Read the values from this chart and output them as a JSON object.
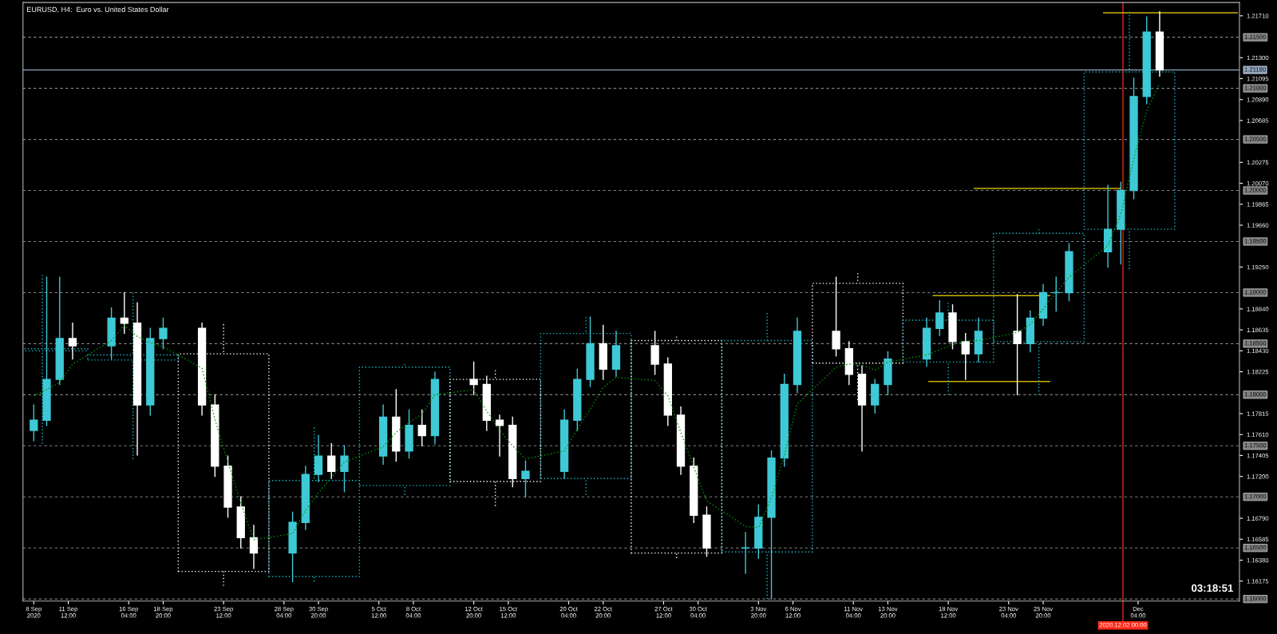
{
  "chart_data": {
    "type": "candlestick",
    "title": "EURUSD, H4:  Euro vs. United States Dollar",
    "xlim": [
      "2020-09-08T00:00",
      "2020-12-11T00:00"
    ],
    "ylim": [
      1.1598,
      1.2184
    ],
    "xticks": [
      {
        "value": "2020-09-08T20:00",
        "label": "8 Sep 2020"
      },
      {
        "value": "2020-09-11T12:00",
        "label": "11 Sep 12:00"
      },
      {
        "value": "2020-09-16T04:00",
        "label": "16 Sep 04:00"
      },
      {
        "value": "2020-09-18T20:00",
        "label": "18 Sep 20:00"
      },
      {
        "value": "2020-09-23T12:00",
        "label": "23 Sep 12:00"
      },
      {
        "value": "2020-09-28T04:00",
        "label": "28 Sep 04:00"
      },
      {
        "value": "2020-09-30T20:00",
        "label": "30 Sep 20:00"
      },
      {
        "value": "2020-10-05T12:00",
        "label": "5 Oct 12:00"
      },
      {
        "value": "2020-10-08T04:00",
        "label": "8 Oct 04:00"
      },
      {
        "value": "2020-10-12T20:00",
        "label": "12 Oct 20:00"
      },
      {
        "value": "2020-10-15T12:00",
        "label": "15 Oct 12:00"
      },
      {
        "value": "2020-10-20T04:00",
        "label": "20 Oct 04:00"
      },
      {
        "value": "2020-10-22T20:00",
        "label": "22 Oct 20:00"
      },
      {
        "value": "2020-10-27T12:00",
        "label": "27 Oct 12:00"
      },
      {
        "value": "2020-10-30T04:00",
        "label": "30 Oct 04:00"
      },
      {
        "value": "2020-11-03T20:00",
        "label": "3 Nov 20:00"
      },
      {
        "value": "2020-11-06T12:00",
        "label": "6 Nov 12:00"
      },
      {
        "value": "2020-11-11T04:00",
        "label": "11 Nov 04:00"
      },
      {
        "value": "2020-11-13T20:00",
        "label": "13 Nov 20:00"
      },
      {
        "value": "2020-11-18T12:00",
        "label": "18 Nov 12:00"
      },
      {
        "value": "2020-11-23T04:00",
        "label": "23 Nov 04:00"
      },
      {
        "value": "2020-11-25T20:00",
        "label": "25 Nov 20:00"
      },
      {
        "value": "2020-12-03T04:00",
        "label": "Dec 04:00"
      }
    ],
    "yticks": [
      {
        "value": 1.2171,
        "label": "1.21710"
      },
      {
        "value": 1.213,
        "label": "1.21300"
      },
      {
        "value": 1.21095,
        "label": "1.21095"
      },
      {
        "value": 1.2089,
        "label": "1.20890"
      },
      {
        "value": 1.20685,
        "label": "1.20685"
      },
      {
        "value": 1.20275,
        "label": "1.20275"
      },
      {
        "value": 1.2007,
        "label": "1.20070"
      },
      {
        "value": 1.19865,
        "label": "1.19865"
      },
      {
        "value": 1.1966,
        "label": "1.19660"
      },
      {
        "value": 1.1925,
        "label": "1.19250"
      },
      {
        "value": 1.1884,
        "label": "1.18840"
      },
      {
        "value": 1.18635,
        "label": "1.18635"
      },
      {
        "value": 1.1843,
        "label": "1.18430"
      },
      {
        "value": 1.18225,
        "label": "1.18225"
      },
      {
        "value": 1.17815,
        "label": "1.17815"
      },
      {
        "value": 1.1761,
        "label": "1.17610"
      },
      {
        "value": 1.17405,
        "label": "1.17405"
      },
      {
        "value": 1.172,
        "label": "1.17200"
      },
      {
        "value": 1.1679,
        "label": "1.16790"
      },
      {
        "value": 1.16585,
        "label": "1.16585"
      },
      {
        "value": 1.1638,
        "label": "1.16380"
      },
      {
        "value": 1.16175,
        "label": "1.16175"
      }
    ],
    "ref_lines": [
      {
        "axis": "y",
        "value": 1.215,
        "label": "1.21500",
        "color": "#808080",
        "line_style": "dashed"
      },
      {
        "axis": "y",
        "value": 1.21,
        "label": "1.21000",
        "color": "#808080",
        "line_style": "dashed"
      },
      {
        "axis": "y",
        "value": 1.205,
        "label": "1.20500",
        "color": "#808080",
        "line_style": "dashed"
      },
      {
        "axis": "y",
        "value": 1.2,
        "label": "1.20000",
        "color": "#808080",
        "line_style": "dashed"
      },
      {
        "axis": "y",
        "value": 1.195,
        "label": "1.19500",
        "color": "#808080",
        "line_style": "dashed"
      },
      {
        "axis": "y",
        "value": 1.19,
        "label": "1.19000",
        "color": "#808080",
        "line_style": "dashed"
      },
      {
        "axis": "y",
        "value": 1.185,
        "label": "1.18500",
        "color": "#808080",
        "line_style": "dashed"
      },
      {
        "axis": "y",
        "value": 1.18,
        "label": "1.18000",
        "color": "#808080",
        "line_style": "dashed"
      },
      {
        "axis": "y",
        "value": 1.175,
        "label": "1.17500",
        "color": "#808080",
        "line_style": "dashed"
      },
      {
        "axis": "y",
        "value": 1.17,
        "label": "1.17000",
        "color": "#808080",
        "line_style": "dashed"
      },
      {
        "axis": "y",
        "value": 1.165,
        "label": "1.16500",
        "color": "#808080",
        "line_style": "dashed"
      },
      {
        "axis": "y",
        "value": 1.16,
        "label": "1.16000",
        "color": "#808080",
        "line_style": "dashed"
      },
      {
        "axis": "y",
        "value": 1.2118,
        "label": "1.21180",
        "color": "#8ea4c0",
        "line_style": "solid"
      },
      {
        "axis": "x",
        "value": "2020-12-02T00:00",
        "label": "2020.12.02 00:00",
        "color": "#ff2a1a",
        "line_style": "solid"
      }
    ],
    "annotations": [
      "03:18:51"
    ],
    "series": [
      {
        "line_style": "dotted",
        "x": [
          "2020-09-09T12:00",
          "2020-09-16T12:00",
          "2020-09-23T12:00",
          "2020-09-30T12:00",
          "2020-10-07T12:00",
          "2020-10-14T12:00",
          "2020-10-21T12:00",
          "2020-10-28T12:00",
          "2020-11-04T12:00",
          "2020-11-11T12:00",
          "2020-11-18T12:00",
          "2020-11-25T12:00",
          "2020-12-02T12:00"
        ],
        "colors": [
          "#17b8c8",
          "#17b8c8",
          "#ffffff",
          "#17b8c8",
          "#17b8c8",
          "#ffffff",
          "#17b8c8",
          "#ffffff",
          "#17b8c8",
          "#ffffff",
          "#17b8c8",
          "#17b8c8",
          "#17b8c8"
        ],
        "ohlc": [
          [
            1.1843,
            1.1917,
            1.1752,
            1.1845
          ],
          [
            1.1834,
            1.19,
            1.1737,
            1.1839
          ],
          [
            1.184,
            1.1869,
            1.1613,
            1.1627
          ],
          [
            1.1622,
            1.1768,
            1.1617,
            1.1716
          ],
          [
            1.1711,
            1.183,
            1.1702,
            1.1827
          ],
          [
            1.1815,
            1.1824,
            1.1691,
            1.1715
          ],
          [
            1.1718,
            1.1876,
            1.1702,
            1.186
          ],
          [
            1.1853,
            1.1857,
            1.164,
            1.1645
          ],
          [
            1.1646,
            1.188,
            1.16,
            1.1853
          ],
          [
            1.1909,
            1.1919,
            1.1795,
            1.1831
          ],
          [
            1.1832,
            1.189,
            1.18,
            1.1873
          ],
          [
            1.1852,
            1.1962,
            1.18,
            1.1958
          ],
          [
            1.1962,
            1.2175,
            1.1923,
            1.2116
          ]
        ]
      },
      {
        "type": "line",
        "line_style": "dotted",
        "color": "#009900",
        "x": [
          "2020-09-08T20:00",
          "2020-09-09T20:00",
          "2020-09-10T20:00",
          "2020-09-11T20:00",
          "2020-09-14T20:00",
          "2020-09-15T20:00",
          "2020-09-16T20:00",
          "2020-09-17T20:00",
          "2020-09-18T20:00",
          "2020-09-21T20:00",
          "2020-09-22T20:00",
          "2020-09-23T20:00",
          "2020-09-24T20:00",
          "2020-09-25T20:00",
          "2020-09-28T20:00",
          "2020-09-29T20:00",
          "2020-09-30T20:00",
          "2020-10-01T20:00",
          "2020-10-02T20:00",
          "2020-10-05T20:00",
          "2020-10-06T20:00",
          "2020-10-07T20:00",
          "2020-10-08T20:00",
          "2020-10-09T20:00",
          "2020-10-12T20:00",
          "2020-10-13T20:00",
          "2020-10-14T20:00",
          "2020-10-15T20:00",
          "2020-10-16T20:00",
          "2020-10-19T20:00",
          "2020-10-20T20:00",
          "2020-10-21T20:00",
          "2020-10-22T20:00",
          "2020-10-23T20:00",
          "2020-10-26T20:00",
          "2020-10-27T20:00",
          "2020-10-28T20:00",
          "2020-10-29T20:00",
          "2020-10-30T20:00",
          "2020-11-02T20:00",
          "2020-11-03T20:00",
          "2020-11-04T20:00",
          "2020-11-05T20:00",
          "2020-11-06T20:00",
          "2020-11-09T20:00",
          "2020-11-10T20:00",
          "2020-11-11T20:00",
          "2020-11-12T20:00",
          "2020-11-13T20:00",
          "2020-11-16T20:00",
          "2020-11-17T20:00",
          "2020-11-18T20:00",
          "2020-11-19T20:00",
          "2020-11-20T20:00",
          "2020-11-23T20:00",
          "2020-11-24T20:00",
          "2020-11-25T20:00",
          "2020-11-26T20:00",
          "2020-11-27T20:00",
          "2020-11-30T20:00",
          "2020-12-01T20:00",
          "2020-12-02T20:00",
          "2020-12-03T20:00",
          "2020-12-04T20:00"
        ],
        "values": [
          1.1799,
          1.1805,
          1.1812,
          1.183,
          1.1853,
          1.1868,
          1.1857,
          1.1851,
          1.1847,
          1.1826,
          1.1776,
          1.1734,
          1.1694,
          1.1658,
          1.1664,
          1.1687,
          1.1704,
          1.1719,
          1.1734,
          1.1749,
          1.1763,
          1.1773,
          1.1781,
          1.18,
          1.1805,
          1.1784,
          1.1765,
          1.175,
          1.1737,
          1.1745,
          1.1766,
          1.1786,
          1.1807,
          1.1817,
          1.1814,
          1.1799,
          1.1763,
          1.1729,
          1.1696,
          1.1671,
          1.167,
          1.1699,
          1.1741,
          1.1791,
          1.1827,
          1.183,
          1.1829,
          1.1824,
          1.1832,
          1.1839,
          1.1844,
          1.1849,
          1.1853,
          1.1853,
          1.1861,
          1.1869,
          1.1884,
          1.19,
          1.1915,
          1.1946,
          1.1977,
          1.2031,
          1.2078,
          1.2105
        ]
      },
      {
        "type": "line",
        "line_style": "solid",
        "color": "#c8b400",
        "x": [
          "2020-11-30T12:00",
          "2020-12-10T20:00"
        ],
        "values": [
          1.2174,
          1.2174
        ]
      },
      {
        "type": "line",
        "line_style": "solid",
        "color": "#c8b400",
        "x": [
          "2020-11-20T12:00",
          "2020-12-01T20:00"
        ],
        "values": [
          1.2002,
          1.2002
        ]
      },
      {
        "type": "line",
        "line_style": "solid",
        "color": "#c8b400",
        "x": [
          "2020-11-17T08:00",
          "2020-11-26T08:00"
        ],
        "values": [
          1.1897,
          1.1897
        ]
      },
      {
        "type": "line",
        "line_style": "solid",
        "color": "#c8b400",
        "x": [
          "2020-11-17T00:00",
          "2020-11-26T08:00"
        ],
        "values": [
          1.1813,
          1.1813
        ]
      },
      {
        "line_style": "solid",
        "x": [
          "2020-09-08T20:00",
          "2020-09-09T20:00",
          "2020-09-10T20:00",
          "2020-09-11T20:00",
          "2020-09-14T20:00",
          "2020-09-15T20:00",
          "2020-09-16T20:00",
          "2020-09-17T20:00",
          "2020-09-18T20:00",
          "2020-09-21T20:00",
          "2020-09-22T20:00",
          "2020-09-23T20:00",
          "2020-09-24T20:00",
          "2020-09-25T20:00",
          "2020-09-28T20:00",
          "2020-09-29T20:00",
          "2020-09-30T20:00",
          "2020-10-01T20:00",
          "2020-10-02T20:00",
          "2020-10-05T20:00",
          "2020-10-06T20:00",
          "2020-10-07T20:00",
          "2020-10-08T20:00",
          "2020-10-09T20:00",
          "2020-10-12T20:00",
          "2020-10-13T20:00",
          "2020-10-14T20:00",
          "2020-10-15T20:00",
          "2020-10-16T20:00",
          "2020-10-19T20:00",
          "2020-10-20T20:00",
          "2020-10-21T20:00",
          "2020-10-22T20:00",
          "2020-10-23T20:00",
          "2020-10-26T20:00",
          "2020-10-27T20:00",
          "2020-10-28T20:00",
          "2020-10-29T20:00",
          "2020-10-30T20:00",
          "2020-11-02T20:00",
          "2020-11-03T20:00",
          "2020-11-04T20:00",
          "2020-11-05T20:00",
          "2020-11-06T20:00",
          "2020-11-09T20:00",
          "2020-11-10T20:00",
          "2020-11-11T20:00",
          "2020-11-12T20:00",
          "2020-11-13T20:00",
          "2020-11-16T20:00",
          "2020-11-17T20:00",
          "2020-11-18T20:00",
          "2020-11-19T20:00",
          "2020-11-20T20:00",
          "2020-11-23T20:00",
          "2020-11-24T20:00",
          "2020-11-25T20:00",
          "2020-11-26T20:00",
          "2020-11-27T20:00",
          "2020-11-30T20:00",
          "2020-12-01T20:00",
          "2020-12-02T20:00",
          "2020-12-03T20:00",
          "2020-12-04T20:00"
        ],
        "colors": [
          "#3ec9d6",
          "#3ec9d6",
          "#3ec9d6",
          "#ffffff",
          "#3ec9d6",
          "#ffffff",
          "#ffffff",
          "#3ec9d6",
          "#3ec9d6",
          "#ffffff",
          "#ffffff",
          "#ffffff",
          "#ffffff",
          "#ffffff",
          "#3ec9d6",
          "#3ec9d6",
          "#3ec9d6",
          "#ffffff",
          "#3ec9d6",
          "#3ec9d6",
          "#ffffff",
          "#3ec9d6",
          "#ffffff",
          "#3ec9d6",
          "#ffffff",
          "#ffffff",
          "#ffffff",
          "#ffffff",
          "#3ec9d6",
          "#3ec9d6",
          "#3ec9d6",
          "#3ec9d6",
          "#ffffff",
          "#3ec9d6",
          "#ffffff",
          "#ffffff",
          "#ffffff",
          "#ffffff",
          "#ffffff",
          "#3ec9d6",
          "#3ec9d6",
          "#3ec9d6",
          "#3ec9d6",
          "#3ec9d6",
          "#ffffff",
          "#ffffff",
          "#ffffff",
          "#3ec9d6",
          "#3ec9d6",
          "#3ec9d6",
          "#3ec9d6",
          "#ffffff",
          "#ffffff",
          "#3ec9d6",
          "#ffffff",
          "#3ec9d6",
          "#3ec9d6",
          "#3ec9d6",
          "#3ec9d6",
          "#3ec9d6",
          "#3ec9d6",
          "#3ec9d6",
          "#3ec9d6",
          "#ffffff"
        ],
        "ohlc": [
          [
            1.1765,
            1.179,
            1.1755,
            1.1775
          ],
          [
            1.1775,
            1.1915,
            1.177,
            1.1815
          ],
          [
            1.1815,
            1.1915,
            1.181,
            1.1855
          ],
          [
            1.1855,
            1.187,
            1.1835,
            1.1848
          ],
          [
            1.1848,
            1.1885,
            1.1835,
            1.1875
          ],
          [
            1.1875,
            1.19,
            1.186,
            1.187
          ],
          [
            1.187,
            1.189,
            1.1741,
            1.179
          ],
          [
            1.179,
            1.1865,
            1.178,
            1.1855
          ],
          [
            1.1855,
            1.1875,
            1.1845,
            1.1865
          ],
          [
            1.1865,
            1.187,
            1.178,
            1.179
          ],
          [
            1.179,
            1.18,
            1.172,
            1.173
          ],
          [
            1.173,
            1.174,
            1.168,
            1.169
          ],
          [
            1.169,
            1.17,
            1.165,
            1.166
          ],
          [
            1.166,
            1.1672,
            1.163,
            1.1645
          ],
          [
            1.1645,
            1.1685,
            1.1617,
            1.1675
          ],
          [
            1.1675,
            1.173,
            1.1668,
            1.1722
          ],
          [
            1.1722,
            1.176,
            1.1715,
            1.174
          ],
          [
            1.174,
            1.1752,
            1.1718,
            1.1725
          ],
          [
            1.1725,
            1.175,
            1.1705,
            1.174
          ],
          [
            1.174,
            1.179,
            1.1732,
            1.1778
          ],
          [
            1.1778,
            1.1805,
            1.1735,
            1.1745
          ],
          [
            1.1745,
            1.1785,
            1.1738,
            1.177
          ],
          [
            1.177,
            1.1785,
            1.175,
            1.176
          ],
          [
            1.176,
            1.1822,
            1.1752,
            1.1815
          ],
          [
            1.1815,
            1.1832,
            1.18,
            1.181
          ],
          [
            1.181,
            1.1818,
            1.1765,
            1.1775
          ],
          [
            1.1775,
            1.178,
            1.174,
            1.177
          ],
          [
            1.177,
            1.1778,
            1.171,
            1.1718
          ],
          [
            1.1718,
            1.1735,
            1.17,
            1.1725
          ],
          [
            1.1725,
            1.1785,
            1.1718,
            1.1775
          ],
          [
            1.1775,
            1.1825,
            1.1765,
            1.1815
          ],
          [
            1.1815,
            1.1876,
            1.1808,
            1.185
          ],
          [
            1.185,
            1.1868,
            1.1815,
            1.1825
          ],
          [
            1.1825,
            1.1862,
            1.1818,
            1.1848
          ],
          [
            1.1848,
            1.1862,
            1.182,
            1.183
          ],
          [
            1.183,
            1.1836,
            1.177,
            1.178
          ],
          [
            1.178,
            1.1788,
            1.1722,
            1.173
          ],
          [
            1.173,
            1.1738,
            1.1675,
            1.1682
          ],
          [
            1.1682,
            1.169,
            1.1642,
            1.165
          ],
          [
            1.165,
            1.1665,
            1.1625,
            1.165
          ],
          [
            1.165,
            1.1692,
            1.164,
            1.168
          ],
          [
            1.168,
            1.1745,
            1.16,
            1.1738
          ],
          [
            1.1738,
            1.182,
            1.173,
            1.181
          ],
          [
            1.181,
            1.1875,
            1.1802,
            1.1862
          ],
          [
            1.1862,
            1.1915,
            1.1838,
            1.1845
          ],
          [
            1.1845,
            1.1852,
            1.181,
            1.182
          ],
          [
            1.182,
            1.1828,
            1.1745,
            1.179
          ],
          [
            1.179,
            1.1815,
            1.1782,
            1.181
          ],
          [
            1.181,
            1.1842,
            1.18,
            1.1835
          ],
          [
            1.1835,
            1.1875,
            1.1828,
            1.1865
          ],
          [
            1.1865,
            1.1892,
            1.1858,
            1.188
          ],
          [
            1.188,
            1.1888,
            1.1845,
            1.1852
          ],
          [
            1.1852,
            1.186,
            1.1815,
            1.184
          ],
          [
            1.184,
            1.1875,
            1.1832,
            1.1862
          ],
          [
            1.1862,
            1.1898,
            1.18,
            1.185
          ],
          [
            1.185,
            1.1882,
            1.1842,
            1.1875
          ],
          [
            1.1875,
            1.1908,
            1.1868,
            1.19
          ],
          [
            1.19,
            1.1915,
            1.1882,
            1.19
          ],
          [
            1.19,
            1.1948,
            1.1892,
            1.194
          ],
          [
            1.194,
            1.2005,
            1.1925,
            1.1962
          ],
          [
            1.1962,
            1.2008,
            1.1928,
            1.2
          ],
          [
            1.2,
            1.211,
            1.1992,
            1.2092
          ],
          [
            1.2092,
            1.217,
            1.2085,
            1.2155
          ],
          [
            1.2155,
            1.2175,
            1.2112,
            1.2118
          ]
        ]
      }
    ]
  }
}
